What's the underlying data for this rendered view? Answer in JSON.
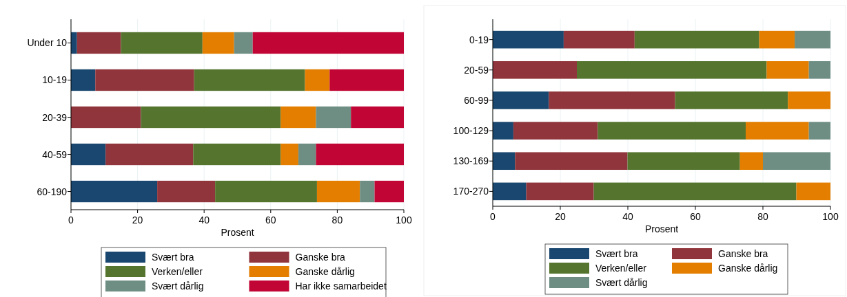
{
  "chart_data": [
    {
      "type": "bar",
      "orientation": "horizontal",
      "stacked": true,
      "categories": [
        "Under 10",
        "10-19",
        "20-39",
        "40-59",
        "60-190"
      ],
      "xlabel": "Prosent",
      "xlim": [
        0,
        100
      ],
      "xticks": [
        0,
        20,
        40,
        60,
        80,
        100
      ],
      "grid": "x",
      "legend": "bottom",
      "series": [
        {
          "name": "Svært bra",
          "color": "#1a476f",
          "values": [
            1.8,
            7.3,
            0,
            10.4,
            25.9
          ]
        },
        {
          "name": "Ganske bra",
          "color": "#90353b",
          "values": [
            13.2,
            29.7,
            21.0,
            26.3,
            17.4
          ]
        },
        {
          "name": "Verken/eller",
          "color": "#55752f",
          "values": [
            24.5,
            33.3,
            42.0,
            26.3,
            30.6
          ]
        },
        {
          "name": "Ganske dårlig",
          "color": "#e37e00",
          "values": [
            9.5,
            7.4,
            10.6,
            5.3,
            12.9
          ]
        },
        {
          "name": "Svært dårlig",
          "color": "#6e8e84",
          "values": [
            5.6,
            0,
            10.5,
            5.3,
            4.4
          ]
        },
        {
          "name": "Har ikke samarbeidet",
          "color": "#c10534",
          "values": [
            45.4,
            22.3,
            15.9,
            26.4,
            8.8
          ]
        }
      ]
    },
    {
      "type": "bar",
      "orientation": "horizontal",
      "stacked": true,
      "categories": [
        "0-19",
        "20-59",
        "60-99",
        "100-129",
        "130-169",
        "170-270"
      ],
      "xlabel": "Prosent",
      "xlim": [
        0,
        100
      ],
      "xticks": [
        0,
        20,
        40,
        60,
        80,
        100
      ],
      "grid": "x",
      "legend": "bottom",
      "series": [
        {
          "name": "Svært bra",
          "color": "#1a476f",
          "values": [
            21.0,
            0,
            16.6,
            6.1,
            6.6,
            9.9
          ]
        },
        {
          "name": "Ganske bra",
          "color": "#90353b",
          "values": [
            21.0,
            24.9,
            37.4,
            25.0,
            33.3,
            20.0
          ]
        },
        {
          "name": "Verken/eller",
          "color": "#55752f",
          "values": [
            36.9,
            56.2,
            33.4,
            43.8,
            33.3,
            60.0
          ]
        },
        {
          "name": "Ganske dårlig",
          "color": "#e37e00",
          "values": [
            10.5,
            12.5,
            12.6,
            18.7,
            6.8,
            10.1
          ]
        },
        {
          "name": "Svært dårlig",
          "color": "#6e8e84",
          "values": [
            10.6,
            6.4,
            0,
            6.4,
            20.0,
            0
          ]
        }
      ]
    }
  ]
}
